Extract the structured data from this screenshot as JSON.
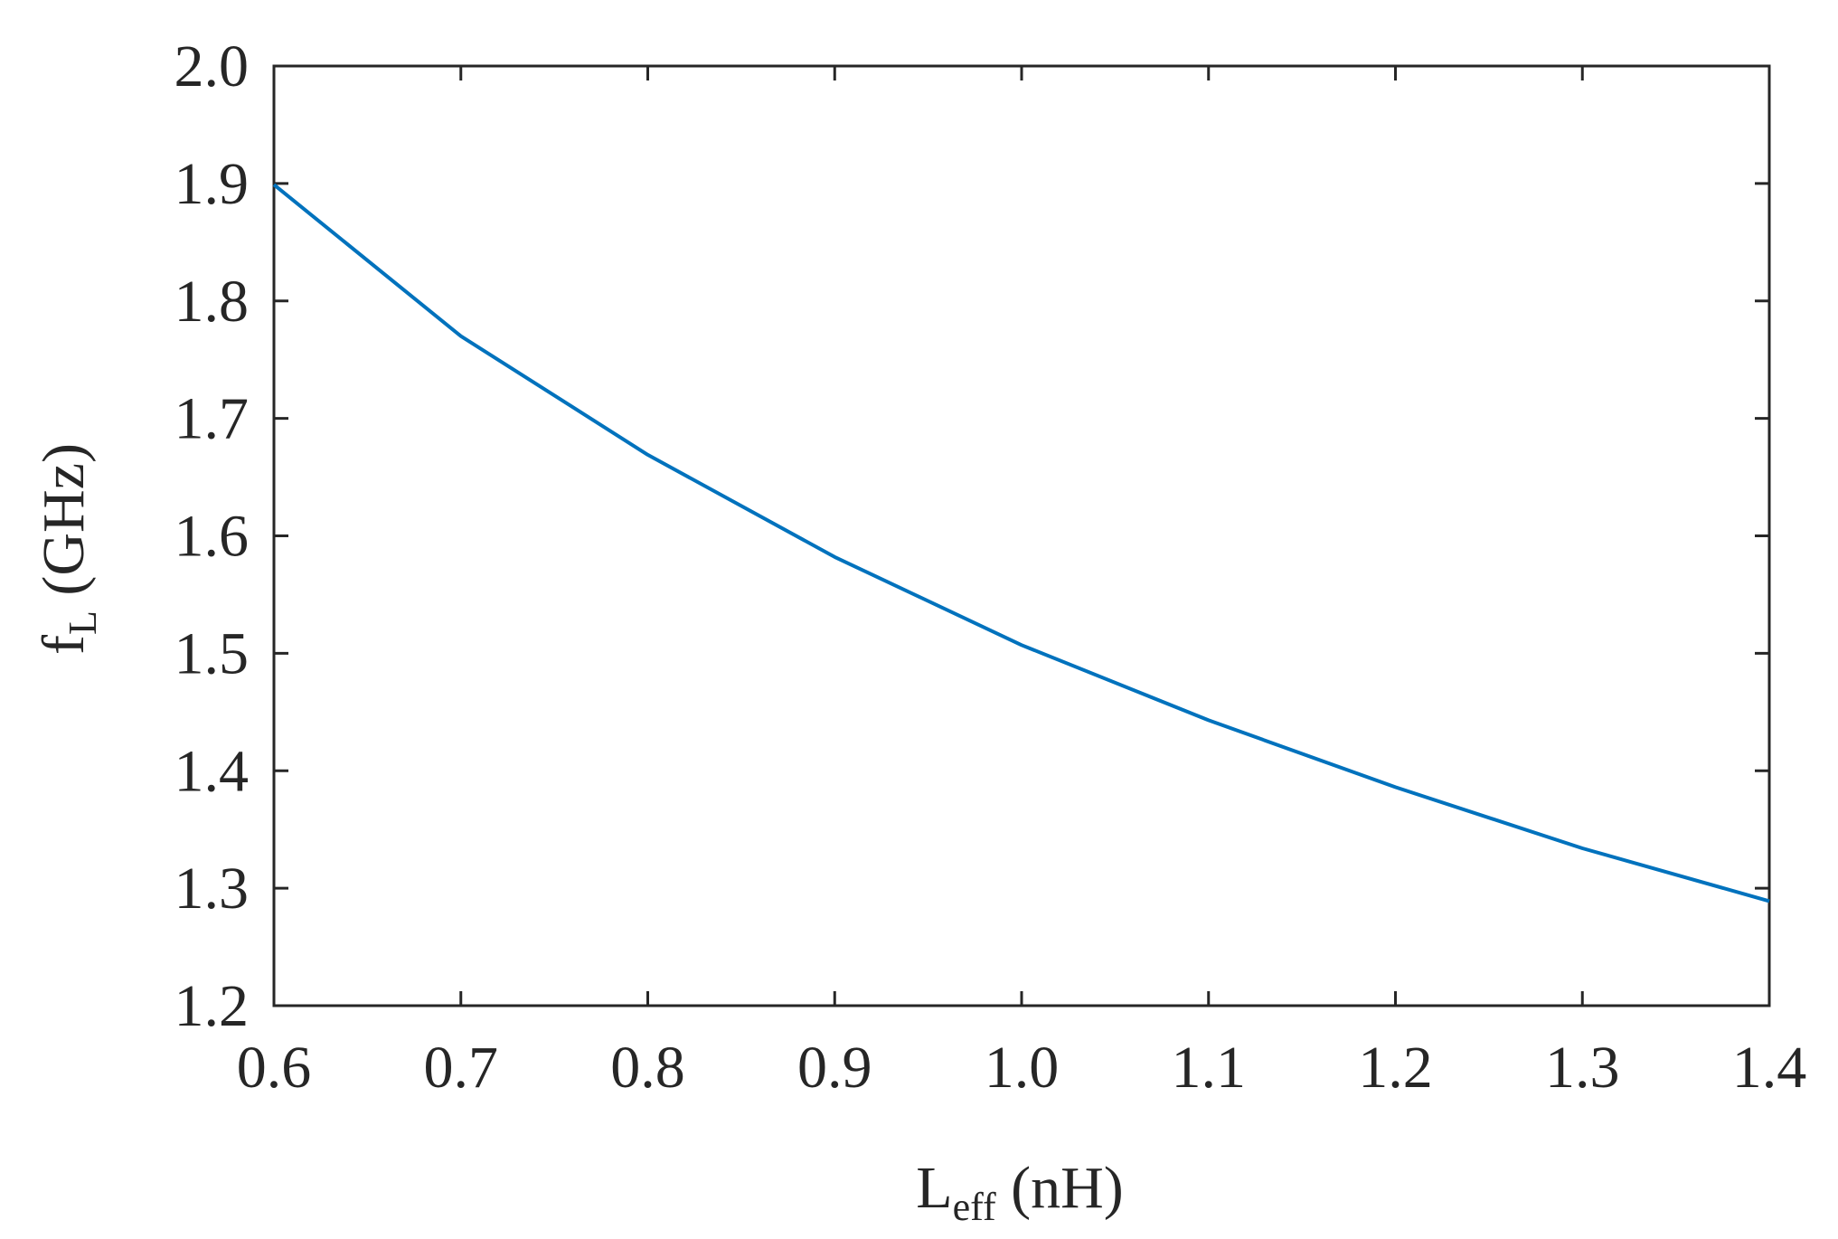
{
  "chart_data": {
    "type": "line",
    "title": "",
    "xlabel": {
      "main": "L",
      "sub": "eff",
      "unit": " (nH)"
    },
    "ylabel": {
      "main": "f",
      "sub": "L",
      "unit": " (GHz)"
    },
    "xlim": [
      0.6,
      1.4
    ],
    "ylim": [
      1.2,
      2.0
    ],
    "x_ticks": [
      "0.6",
      "0.7",
      "0.8",
      "0.9",
      "1.0",
      "1.1",
      "1.2",
      "1.3",
      "1.4"
    ],
    "y_ticks": [
      "1.2",
      "1.3",
      "1.4",
      "1.5",
      "1.6",
      "1.7",
      "1.8",
      "1.9",
      "2.0"
    ],
    "grid": false,
    "series": [
      {
        "color": "#0072BD",
        "x": [
          0.6,
          0.7,
          0.8,
          0.9,
          1.0,
          1.1,
          1.2,
          1.3,
          1.4
        ],
        "y": [
          1.899,
          1.77,
          1.669,
          1.582,
          1.507,
          1.443,
          1.386,
          1.334,
          1.289
        ]
      }
    ]
  }
}
